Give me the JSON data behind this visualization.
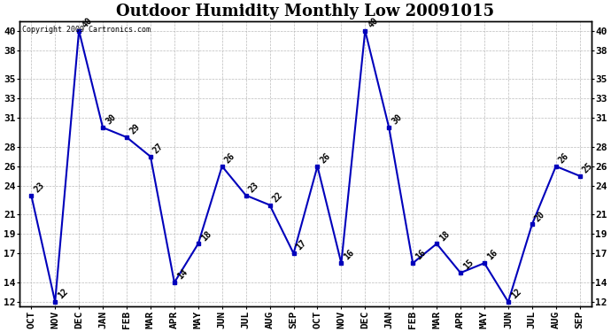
{
  "title": "Outdoor Humidity Monthly Low 20091015",
  "copyright": "Copyright 2009 Cartronics.com",
  "categories": [
    "OCT",
    "NOV",
    "DEC",
    "JAN",
    "FEB",
    "MAR",
    "APR",
    "MAY",
    "JUN",
    "JUL",
    "AUG",
    "SEP",
    "OCT",
    "NOV",
    "DEC",
    "JAN",
    "FEB",
    "MAR",
    "APR",
    "MAY",
    "JUN",
    "JUL",
    "AUG",
    "SEP"
  ],
  "values": [
    23,
    12,
    40,
    30,
    29,
    27,
    14,
    18,
    26,
    23,
    22,
    17,
    26,
    16,
    40,
    30,
    16,
    18,
    15,
    16,
    12,
    20,
    26,
    25
  ],
  "ylim": [
    11.5,
    41.0
  ],
  "yticks": [
    40,
    38,
    35,
    33,
    31,
    28,
    26,
    24,
    21,
    19,
    17,
    14,
    12
  ],
  "line_color": "#0000bb",
  "marker_color": "#0000bb",
  "background_color": "#ffffff",
  "grid_color": "#bbbbbb",
  "title_fontsize": 13,
  "tick_fontsize": 8,
  "label_fontsize": 7,
  "annot_fontsize": 7
}
